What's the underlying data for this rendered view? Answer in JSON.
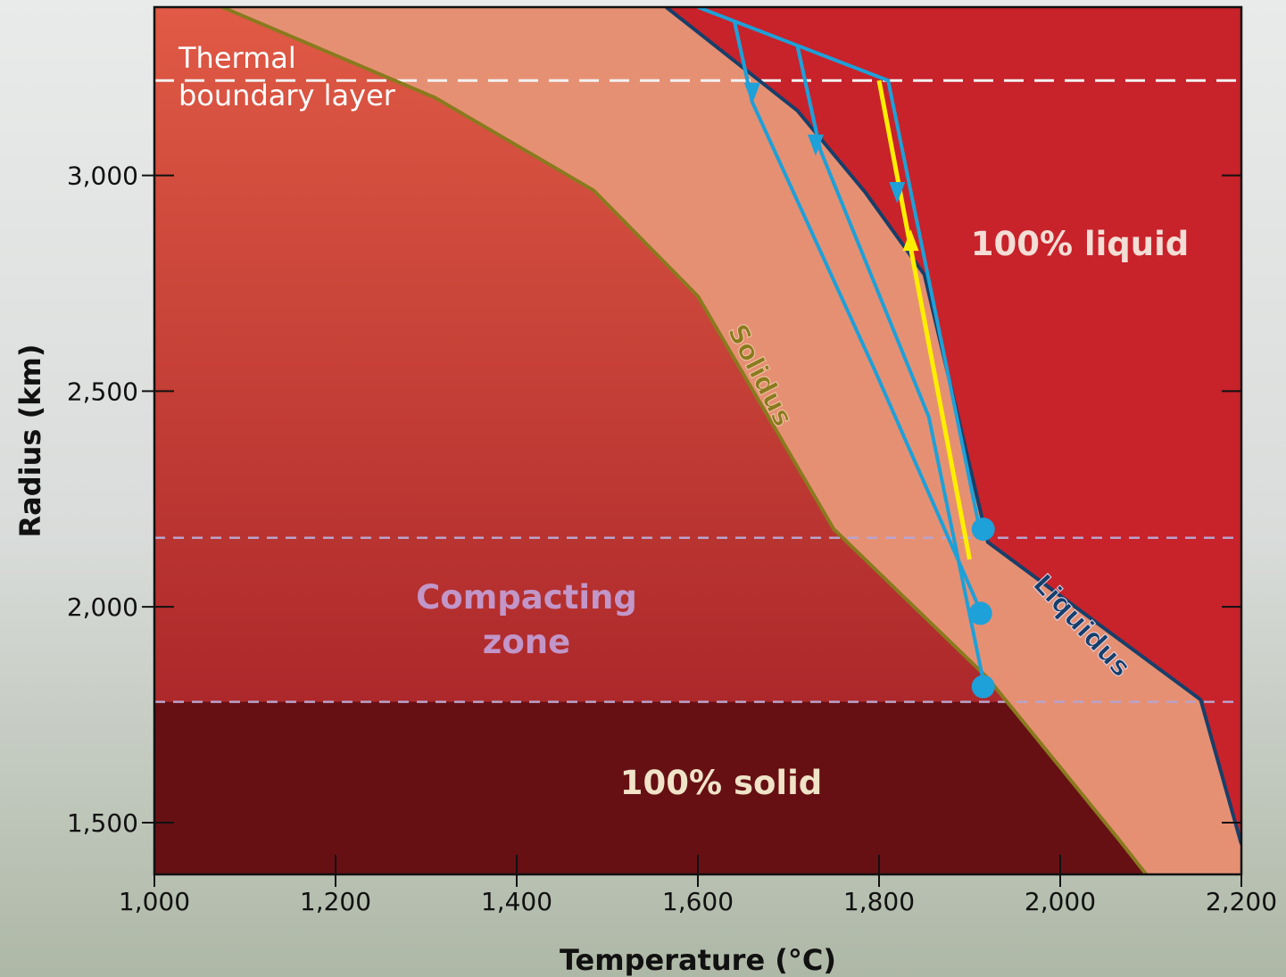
{
  "chart_data": {
    "type": "line",
    "xlabel": "Temperature (°C)",
    "ylabel": "Radius (km)",
    "xlim": [
      1000,
      2200
    ],
    "ylim": [
      1380,
      3390
    ],
    "x_ticks": [
      1000,
      1200,
      1400,
      1600,
      1800,
      2000,
      2200
    ],
    "x_tick_labels": [
      "1,000",
      "1,200",
      "1,400",
      "1,600",
      "1,800",
      "2,000",
      "2,200"
    ],
    "y_ticks": [
      1500,
      2000,
      2500,
      3000
    ],
    "y_tick_labels": [
      "1,500",
      "2,000",
      "2,500",
      "3,000"
    ],
    "grid": false,
    "colors": {
      "liquid_region": "#c8222b",
      "partial_melt_region": "#e69073",
      "solid_region_top": "#e05a45",
      "solid_region_bottom": "#a01c24",
      "fully_solid_region": "#661014",
      "solidus": "#8a7a1e",
      "liquidus": "#173f6a",
      "geotherm": "#1ea0d8",
      "adiabat": "#ffee00"
    },
    "series": [
      {
        "name": "Solidus",
        "points": [
          [
            1075,
            3390
          ],
          [
            1310,
            3180
          ],
          [
            1485,
            2965
          ],
          [
            1600,
            2720
          ],
          [
            1750,
            2180
          ],
          [
            1920,
            1835
          ],
          [
            2065,
            1460
          ],
          [
            2095,
            1380
          ]
        ]
      },
      {
        "name": "Liquidus",
        "points": [
          [
            1565,
            3390
          ],
          [
            1710,
            3150
          ],
          [
            1785,
            2960
          ],
          [
            1905,
            2620
          ],
          [
            2015,
            2300
          ],
          [
            2000,
            2410
          ],
          [
            1920,
            2150
          ],
          [
            2155,
            1785
          ],
          [
            2200,
            1450
          ]
        ]
      },
      {
        "name": "",
        "points": [
          [
            1600,
            3390
          ],
          [
            1810,
            3220
          ],
          [
            1910,
            2190
          ]
        ]
      },
      {
        "name": "",
        "points": [
          [
            1640,
            3360
          ],
          [
            1660,
            3170
          ],
          [
            1795,
            2550
          ],
          [
            1910,
            2000
          ]
        ]
      },
      {
        "name": "",
        "points": [
          [
            1710,
            3300
          ],
          [
            1735,
            3060
          ],
          [
            1855,
            2440
          ],
          [
            1915,
            1830
          ]
        ]
      },
      {
        "name": "",
        "points": [
          [
            1800,
            3220
          ],
          [
            1900,
            2110
          ]
        ]
      }
    ],
    "geotherm_connectors": [
      [
        [
          1640,
          3360
        ],
        [
          1660,
          3170
        ]
      ],
      [
        [
          1710,
          3300
        ],
        [
          1735,
          3060
        ]
      ]
    ],
    "geotherm_arrows": [
      [
        1660,
        3190
      ],
      [
        1730,
        3070
      ],
      [
        1820,
        2960
      ]
    ],
    "adiabat_arrow": [
      1835,
      2850
    ],
    "endpoints": [
      [
        1915,
        2180
      ],
      [
        1912,
        1985
      ],
      [
        1915,
        1815
      ]
    ],
    "boundaries": [
      {
        "y": 3220,
        "style": "dashed-white"
      },
      {
        "y": 2160,
        "style": "dashed-lavender"
      },
      {
        "y": 1780,
        "style": "dashed-lavender"
      }
    ],
    "annotations": {
      "thermal_boundary_layer_line1": "Thermal",
      "thermal_boundary_layer_line2": "boundary layer",
      "liquid": "100% liquid",
      "solid": "100% solid",
      "compacting_line1": "Compacting",
      "compacting_line2": "zone",
      "solidus_label": "Solidus",
      "liquidus_label": "Liquidus"
    }
  }
}
